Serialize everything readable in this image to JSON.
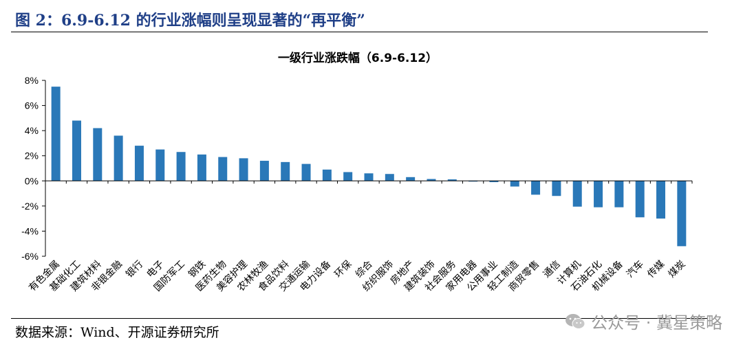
{
  "figure_title": "图 2：6.9-6.12 的行业涨幅则呈现显著的“再平衡”",
  "source": "数据来源：Wind、开源证券研究所",
  "watermark": {
    "text": "公众号 · 冀星策略",
    "icon": "wechat-icon"
  },
  "colors": {
    "bar": "#2a78b8",
    "title": "#1f3f87"
  },
  "chart_data": {
    "type": "bar",
    "title": "一级行业涨跌幅（6.9-6.12）",
    "xlabel": "",
    "ylabel": "",
    "ylim": [
      -6,
      8
    ],
    "yticks": [
      8,
      6,
      4,
      2,
      0,
      -2,
      -4,
      -6
    ],
    "ytick_labels": [
      "8%",
      "6%",
      "4%",
      "2%",
      "0%",
      "-2%",
      "-4%",
      "-6%"
    ],
    "grid": false,
    "categories": [
      "有色金属",
      "基础化工",
      "建筑材料",
      "非银金融",
      "银行",
      "电子",
      "国防军工",
      "钢铁",
      "医药生物",
      "美容护理",
      "农林牧渔",
      "食品饮料",
      "交通运输",
      "电力设备",
      "环保",
      "综合",
      "纺织服饰",
      "房地产",
      "建筑装饰",
      "社会服务",
      "家用电器",
      "公用事业",
      "轻工制造",
      "商贸零售",
      "通信",
      "计算机",
      "石油石化",
      "机械设备",
      "汽车",
      "传媒",
      "煤炭"
    ],
    "values": [
      7.5,
      4.8,
      4.2,
      3.6,
      2.8,
      2.5,
      2.3,
      2.1,
      1.9,
      1.8,
      1.6,
      1.5,
      1.35,
      0.9,
      0.7,
      0.6,
      0.55,
      0.3,
      0.15,
      0.12,
      -0.05,
      -0.1,
      -0.45,
      -1.1,
      -1.2,
      -2.05,
      -2.1,
      -2.1,
      -2.9,
      -3.0,
      -5.2
    ]
  }
}
